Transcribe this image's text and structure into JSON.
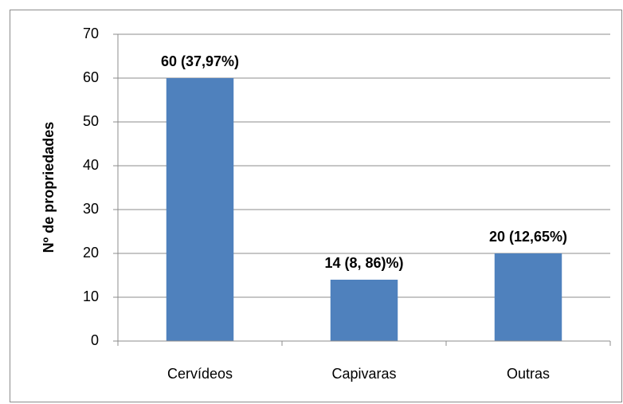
{
  "chart_data": {
    "type": "bar",
    "y_label": "Nº de propriedades",
    "categories": [
      "Cervídeos",
      "Capivaras",
      "Outras"
    ],
    "values": [
      60,
      14,
      20
    ],
    "value_labels": [
      "60 (37,97%)",
      "14 (8, 86)%)",
      "20 (12,65%)"
    ],
    "color": "#4f81bd",
    "ylim": [
      0,
      70
    ],
    "yticks": [
      0,
      10,
      20,
      30,
      40,
      50,
      60,
      70
    ],
    "grid": true
  }
}
